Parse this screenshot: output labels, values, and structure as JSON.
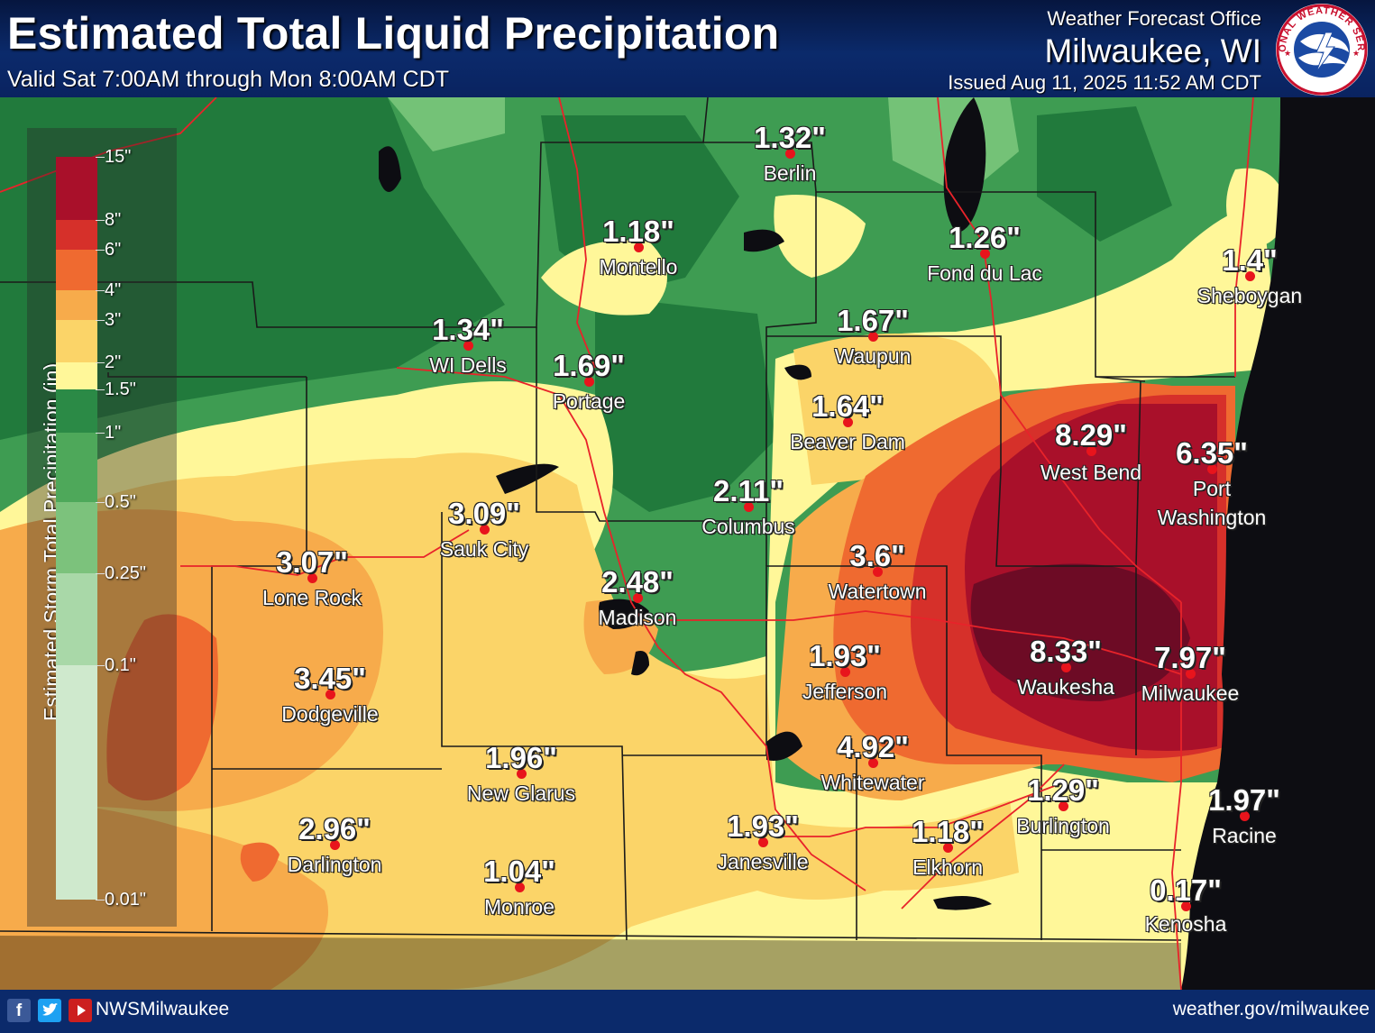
{
  "header": {
    "title": "Estimated Total Liquid Precipitation",
    "valid": "Valid Sat 7:00AM through Mon 8:00AM CDT",
    "office_label": "Weather Forecast Office",
    "office_city": "Milwaukee, WI",
    "issued": "Issued Aug 11, 2025 11:52 AM CDT",
    "logo_text": "NATIONAL WEATHER SERVICE"
  },
  "legend": {
    "title": "Estimated Storm Total Precipitation (in)",
    "bins": [
      {
        "label": "0.01\"",
        "color": "#cfe9cd"
      },
      {
        "label": "0.1\"",
        "color": "#a9d8a8"
      },
      {
        "label": "0.25\"",
        "color": "#7cc27c"
      },
      {
        "label": "0.5\"",
        "color": "#4ea85a"
      },
      {
        "label": "1\"",
        "color": "#2b8a46"
      },
      {
        "label": "1.5\"",
        "color": "#fff799"
      },
      {
        "label": "2\"",
        "color": "#fbd468"
      },
      {
        "label": "3\"",
        "color": "#f7ab4b"
      },
      {
        "label": "4\"",
        "color": "#ef6a30"
      },
      {
        "label": "6\"",
        "color": "#d6302a"
      },
      {
        "label": "8\"",
        "color": "#a9102a"
      },
      {
        "label": "15\"",
        "color": "#6d0b25"
      }
    ]
  },
  "colors": {
    "lake": "#0d0d12",
    "county_line": "#1a1a1a",
    "highway": "#e8232a",
    "base_green": "#3e9c52"
  },
  "cities": [
    {
      "name": "Berlin",
      "value": "1.32\""
    },
    {
      "name": "Montello",
      "value": "1.18\""
    },
    {
      "name": "Fond du Lac",
      "value": "1.26\""
    },
    {
      "name": "Sheboygan",
      "value": "1.4\""
    },
    {
      "name": "WI Dells",
      "value": "1.34\""
    },
    {
      "name": "Portage",
      "value": "1.69\""
    },
    {
      "name": "Waupun",
      "value": "1.67\""
    },
    {
      "name": "Beaver Dam",
      "value": "1.64\""
    },
    {
      "name": "West Bend",
      "value": "8.29\""
    },
    {
      "name": "Port Washington",
      "value": "6.35\""
    },
    {
      "name": "Columbus",
      "value": "2.11\""
    },
    {
      "name": "Sauk City",
      "value": "3.09\""
    },
    {
      "name": "Lone Rock",
      "value": "3.07\""
    },
    {
      "name": "Watertown",
      "value": "3.6\""
    },
    {
      "name": "Madison",
      "value": "2.48\""
    },
    {
      "name": "Waukesha",
      "value": "8.33\""
    },
    {
      "name": "Milwaukee",
      "value": "7.97\""
    },
    {
      "name": "Jefferson",
      "value": "1.93\""
    },
    {
      "name": "Dodgeville",
      "value": "3.45\""
    },
    {
      "name": "Whitewater",
      "value": "4.92\""
    },
    {
      "name": "New Glarus",
      "value": "1.96\""
    },
    {
      "name": "Burlington",
      "value": "1.29\""
    },
    {
      "name": "Racine",
      "value": "1.97\""
    },
    {
      "name": "Darlington",
      "value": "2.96\""
    },
    {
      "name": "Janesville",
      "value": "1.93\""
    },
    {
      "name": "Elkhorn",
      "value": "1.18\""
    },
    {
      "name": "Monroe",
      "value": "1.04\""
    },
    {
      "name": "Kenosha",
      "value": "0.17\""
    }
  ],
  "footer": {
    "handle": "NWSMilwaukee",
    "site": "weather.gov/milwaukee",
    "icons": [
      "facebook-icon",
      "twitter-icon",
      "youtube-icon"
    ]
  }
}
